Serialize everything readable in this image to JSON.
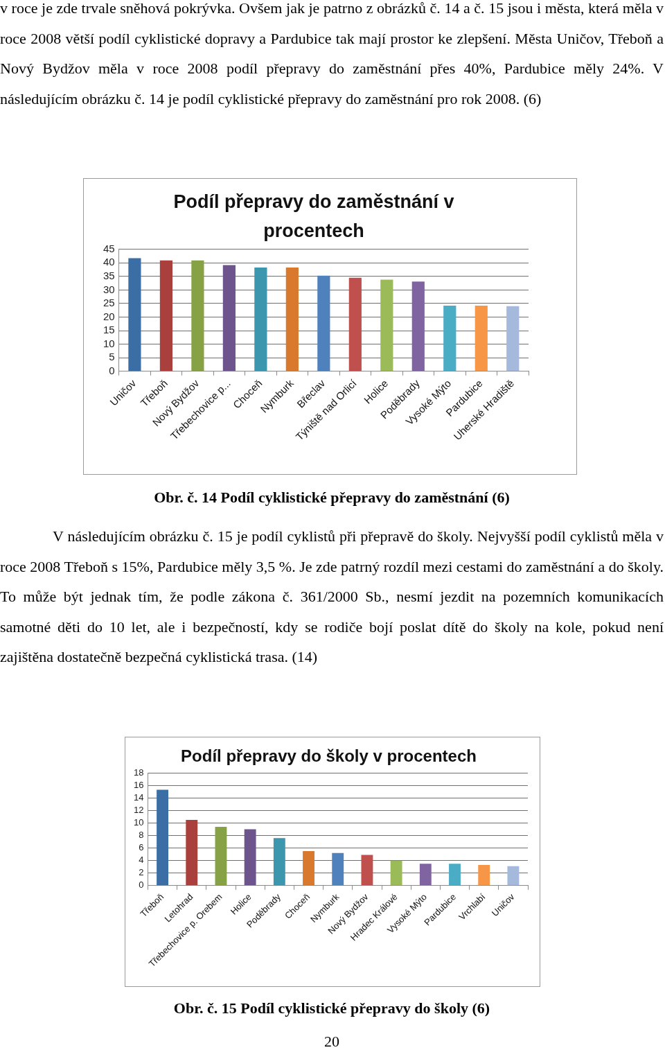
{
  "chart_data": [
    {
      "type": "bar",
      "title": "Podíl přepravy do zaměstnání v procentech",
      "categories": [
        "Uničov",
        "Třeboň",
        "Nový Bydžov",
        "Třebechovice p...",
        "Choceň",
        "Nymburk",
        "Břeclav",
        "Týniště nad Orlicí",
        "Holice",
        "Poděbrady",
        "Vysoké Mýto",
        "Pardubice",
        "Uherské Hradiště"
      ],
      "values": [
        41.7,
        40.9,
        40.9,
        39.2,
        38.3,
        38.3,
        35.3,
        34.5,
        33.8,
        33.1,
        24.2,
        24.2,
        24.0
      ],
      "colors": [
        "#3c6ea6",
        "#a9403d",
        "#86a245",
        "#6e548d",
        "#3b96ae",
        "#d9792e",
        "#4f81bd",
        "#c0504d",
        "#9bbb59",
        "#8064a2",
        "#4bacc6",
        "#f79646",
        "#a5b9dc"
      ],
      "ylim": [
        0,
        45
      ],
      "yticks": [
        0,
        5,
        10,
        15,
        20,
        25,
        30,
        35,
        40,
        45
      ],
      "grid": "y",
      "annotations": [
        "v roce je zde trvale sněhová pokrývka. Ovšem jak je patrno z obrázků č. 14 a č. 15 jsou i města, která měla v roce 2008 větší podíl cyklistické dopravy a Pardubice tak mají prostor ke zlepšení. Města Uničov, Třeboň a Nový Bydžov měla v roce 2008 podíl přepravy do zaměstnání přes 40%, Pardubice měly 24%. V následujícím obrázku č. 14 je podíl cyklistické přepravy do zaměstnání pro rok 2008. (6)",
        "Obr. č. 14 Podíl cyklistické přepravy do zaměstnání (6)"
      ]
    },
    {
      "type": "bar",
      "title": "Podíl přepravy do školy v procentech",
      "categories": [
        "Třeboň",
        "Letohrad",
        "Třebechovice p. Orebem",
        "Holice",
        "Poděbrady",
        "Choceň",
        "Nymburk",
        "Nový Bydžov",
        "Hradec Králové",
        "Vysoké Mýto",
        "Pardubice",
        "Vrchlabí",
        "Uničov"
      ],
      "values": [
        15.3,
        10.5,
        9.4,
        9.0,
        7.6,
        5.5,
        5.2,
        4.9,
        4.0,
        3.5,
        3.5,
        3.3,
        3.1
      ],
      "colors": [
        "#3c6ea6",
        "#a9403d",
        "#86a245",
        "#6e548d",
        "#3b96ae",
        "#d9792e",
        "#4f81bd",
        "#c0504d",
        "#9bbb59",
        "#8064a2",
        "#4bacc6",
        "#f79646",
        "#a5b9dc"
      ],
      "ylim": [
        0,
        18
      ],
      "yticks": [
        0,
        2,
        4,
        6,
        8,
        10,
        12,
        14,
        16,
        18
      ],
      "grid": "y",
      "annotations": [
        "V následujícím obrázku č. 15 je podíl cyklistů při přepravě do školy. Nejvyšší podíl cyklistů měla v roce 2008 Třeboň s 15%, Pardubice měly 3,5 %. Je zde patrný rozdíl mezi cestami do zaměstnání a do školy. To může být jednak tím, že podle zákona č. 361/2000 Sb., nesmí jezdit na pozemních komunikacích samotné děti do 10 let, ale i bezpečností, kdy se rodiče bojí poslat dítě do školy na kole, pokud není zajištěna dostatečně bezpečná cyklistická trasa. (14)",
        "Obr. č. 15 Podíl cyklistické přepravy do školy (6)",
        "20"
      ]
    }
  ]
}
